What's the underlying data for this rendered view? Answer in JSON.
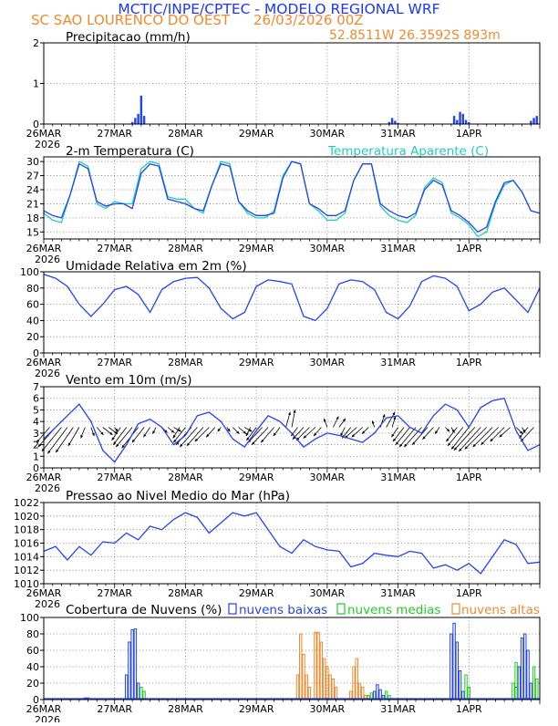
{
  "header": {
    "title": "MCTIC/INPE/CPTEC - MODELO REGIONAL WRF",
    "station": "SC SAO LOURENCO DO OEST",
    "run": "26/03/2026 00Z",
    "location": "52.8511W 26.3592S 893m"
  },
  "colors": {
    "title": "#1a36ff",
    "station": "#ee8a2e",
    "blue": "#2244ee",
    "cyan": "#22ccbb",
    "green": "#22cc22",
    "orange": "#ee8a2e",
    "black": "#000000"
  },
  "time_axis": {
    "labels": [
      "26MAR",
      "27MAR",
      "28MAR",
      "29MAR",
      "30MAR",
      "31MAR",
      "1APR"
    ],
    "year": "2026",
    "hours_total": 168
  },
  "chart_data": [
    {
      "id": "precip",
      "type": "bar",
      "title": "Precipitacao (mm/h)",
      "ylim": [
        0,
        2
      ],
      "yticks": [
        0,
        1,
        2
      ],
      "x_hours": [
        30,
        31,
        32,
        33,
        34,
        117,
        118,
        119,
        120,
        139,
        140,
        141,
        142,
        143,
        144,
        165,
        166,
        167
      ],
      "values": [
        0.05,
        0.15,
        0.25,
        0.7,
        0.2,
        0.05,
        0.15,
        0.08,
        0.03,
        0.2,
        0.1,
        0.3,
        0.25,
        0.1,
        0.05,
        0.08,
        0.15,
        0.2
      ]
    },
    {
      "id": "temp",
      "type": "line",
      "title": "2-m Temperatura (C)",
      "legend": "Temperatura Aparente (C)",
      "ylim": [
        13.5,
        31
      ],
      "yticks": [
        15,
        18,
        21,
        24,
        27,
        30
      ],
      "x": [
        0,
        3,
        6,
        9,
        12,
        15,
        18,
        21,
        24,
        27,
        30,
        33,
        36,
        39,
        42,
        45,
        48,
        51,
        54,
        57,
        60,
        63,
        66,
        69,
        72,
        75,
        78,
        81,
        84,
        87,
        90,
        93,
        96,
        99,
        102,
        105,
        108,
        111,
        114,
        117,
        120,
        123,
        126,
        129,
        132,
        135,
        138,
        141,
        144,
        147,
        150,
        153,
        156,
        159,
        162,
        165,
        168
      ],
      "series": [
        {
          "name": "2-m Temperatura",
          "color": "blue",
          "values": [
            19.5,
            18.5,
            18.0,
            23.0,
            29.5,
            28.5,
            21.5,
            20.5,
            21.0,
            21.0,
            20.0,
            27.5,
            29.5,
            29.0,
            22.0,
            21.5,
            21.0,
            20.0,
            19.5,
            25.0,
            29.5,
            29.0,
            21.5,
            19.5,
            18.5,
            18.5,
            19.0,
            26.5,
            30.0,
            29.5,
            21.0,
            20.0,
            18.5,
            18.5,
            19.5,
            26.0,
            29.5,
            29.5,
            21.0,
            19.5,
            18.5,
            18.0,
            19.0,
            24.0,
            26.0,
            25.0,
            19.5,
            18.5,
            17.0,
            15.0,
            16.0,
            21.5,
            25.5,
            26.0,
            23.5,
            19.5,
            19.0
          ]
        },
        {
          "name": "Temperatura Aparente",
          "color": "cyan",
          "values": [
            19.0,
            17.5,
            17.0,
            23.0,
            30.0,
            29.0,
            21.0,
            20.0,
            21.5,
            21.0,
            21.0,
            28.5,
            30.0,
            29.5,
            22.5,
            22.0,
            22.0,
            20.0,
            19.0,
            25.0,
            30.0,
            29.5,
            21.5,
            19.0,
            18.0,
            18.0,
            19.5,
            27.0,
            30.0,
            29.5,
            21.0,
            19.5,
            17.5,
            17.5,
            19.0,
            26.0,
            29.5,
            29.5,
            20.5,
            18.5,
            17.5,
            17.0,
            18.5,
            24.5,
            26.5,
            25.5,
            19.0,
            18.0,
            16.5,
            14.0,
            15.0,
            21.0,
            25.0,
            26.0,
            23.5,
            19.5,
            19.0
          ]
        }
      ]
    },
    {
      "id": "rh",
      "type": "line",
      "title": "Umidade Relativa em 2m (%)",
      "ylim": [
        0,
        100
      ],
      "yticks": [
        0,
        20,
        40,
        60,
        80,
        100
      ],
      "x": [
        0,
        4,
        8,
        12,
        16,
        20,
        24,
        28,
        32,
        36,
        40,
        44,
        48,
        52,
        56,
        60,
        64,
        68,
        72,
        76,
        80,
        84,
        88,
        92,
        96,
        100,
        104,
        108,
        112,
        116,
        120,
        124,
        128,
        132,
        136,
        140,
        144,
        148,
        152,
        156,
        160,
        164,
        168
      ],
      "series": [
        {
          "name": "Umidade Relativa",
          "color": "blue",
          "values": [
            97,
            92,
            82,
            60,
            45,
            60,
            78,
            82,
            72,
            50,
            78,
            88,
            92,
            93,
            80,
            55,
            42,
            50,
            82,
            90,
            88,
            85,
            45,
            40,
            55,
            85,
            90,
            88,
            78,
            50,
            42,
            58,
            88,
            95,
            92,
            82,
            52,
            60,
            75,
            80,
            65,
            50,
            80
          ]
        }
      ]
    },
    {
      "id": "wind",
      "type": "line",
      "title": "Vento em 10m (m/s)",
      "ylim": [
        0,
        7
      ],
      "yticks": [
        0,
        1,
        2,
        3,
        4,
        5,
        6,
        7
      ],
      "x": [
        0,
        4,
        8,
        12,
        16,
        20,
        24,
        28,
        32,
        36,
        40,
        44,
        48,
        52,
        56,
        60,
        64,
        68,
        72,
        76,
        80,
        84,
        88,
        92,
        96,
        100,
        104,
        108,
        112,
        116,
        120,
        124,
        128,
        132,
        136,
        140,
        144,
        148,
        152,
        156,
        160,
        164,
        168
      ],
      "series": [
        {
          "name": "Velocidade do vento",
          "color": "blue",
          "values": [
            2.5,
            3.5,
            4.5,
            5.5,
            4.0,
            1.5,
            0.5,
            2.0,
            3.8,
            4.2,
            3.5,
            2.0,
            2.8,
            4.5,
            4.8,
            4.0,
            2.5,
            1.8,
            3.2,
            4.5,
            4.0,
            3.0,
            1.8,
            2.5,
            3.0,
            2.8,
            2.5,
            2.2,
            3.0,
            4.3,
            4.5,
            3.5,
            3.0,
            4.5,
            5.5,
            5.0,
            3.5,
            5.2,
            5.8,
            6.0,
            3.2,
            1.5,
            2.0
          ]
        }
      ],
      "vector_baseline": 3.5,
      "vectors": {
        "x": [
          2,
          4,
          6,
          8,
          10,
          12,
          14,
          16,
          18,
          20,
          22,
          24,
          26,
          28,
          30,
          32,
          34,
          36,
          38,
          40,
          42,
          44,
          46,
          48,
          50,
          52,
          54,
          56,
          58,
          60,
          62,
          64,
          66,
          68,
          70,
          72,
          74,
          76,
          78,
          80,
          82,
          84,
          86,
          88,
          90,
          92,
          94,
          96,
          98,
          100,
          102,
          104,
          106,
          108,
          110,
          112,
          114,
          116,
          118,
          120,
          122,
          124,
          126,
          128,
          130,
          132,
          134,
          136,
          138,
          140,
          142,
          144,
          146,
          148,
          150,
          152,
          154,
          156,
          158,
          160,
          162,
          164,
          166
        ],
        "u": [
          -1.2,
          -1.6,
          -1.8,
          -1.8,
          -1.6,
          -1.0,
          -0.4,
          0.3,
          0.6,
          0.9,
          0.8,
          0.3,
          -0.8,
          -1.2,
          -1.5,
          -1.5,
          -1.1,
          -0.6,
          -0.3,
          0.5,
          0.6,
          0.7,
          -0.6,
          -1.1,
          -1.4,
          -1.6,
          -1.5,
          -1.3,
          -0.8,
          -0.3,
          0.3,
          0.6,
          0.7,
          0.7,
          -0.4,
          -0.9,
          -1.3,
          -1.5,
          -1.2,
          -0.6,
          0.4,
          0.3,
          -0.6,
          -1.0,
          -1.2,
          -1.1,
          -0.7,
          -0.3,
          0.5,
          0.6,
          -0.4,
          -0.8,
          -1.1,
          -1.0,
          -0.6,
          -0.2,
          0.4,
          0.8,
          0.3,
          -0.6,
          -1.0,
          -1.3,
          -1.5,
          -1.6,
          -1.4,
          -1.0,
          -0.4,
          0.4,
          0.3,
          -1.0,
          -1.4,
          -1.6,
          -1.9,
          -2.0,
          -2.0,
          -1.8,
          -1.6,
          -1.3,
          -1.0,
          0.6,
          0.3,
          -0.8,
          -1.2
        ],
        "v": [
          -1.4,
          -1.8,
          -2.2,
          -2.4,
          -2.3,
          -1.7,
          -1.0,
          -0.8,
          -0.7,
          -0.7,
          -0.6,
          -0.4,
          -1.2,
          -1.6,
          -1.8,
          -1.9,
          -1.4,
          -0.9,
          -0.6,
          -0.5,
          -0.5,
          -0.4,
          -1.0,
          -1.4,
          -1.6,
          -1.8,
          -1.7,
          -1.3,
          -0.9,
          -0.4,
          -0.4,
          -0.6,
          -0.6,
          -0.4,
          -0.8,
          -1.2,
          -1.4,
          -1.6,
          -1.4,
          -0.8,
          1.4,
          1.6,
          -0.8,
          -1.1,
          -1.2,
          -1.0,
          -0.8,
          0.8,
          1.0,
          0.8,
          -0.8,
          -1.0,
          -1.0,
          -0.9,
          -0.6,
          0.6,
          1.2,
          1.4,
          1.0,
          -0.9,
          -1.3,
          -1.6,
          -1.8,
          -1.8,
          -1.6,
          -1.1,
          -0.6,
          -0.4,
          -0.5,
          -1.3,
          -1.7,
          -2.0,
          -2.1,
          -2.2,
          -2.0,
          -1.8,
          -1.6,
          -1.3,
          -0.9,
          -0.6,
          -0.5,
          -1.0,
          -1.3
        ]
      }
    },
    {
      "id": "pres",
      "type": "line",
      "title": "Pressao ao Nivel Medio do Mar (hPa)",
      "ylim": [
        1010,
        1022
      ],
      "yticks": [
        1010,
        1012,
        1014,
        1016,
        1018,
        1020,
        1022
      ],
      "x": [
        0,
        4,
        8,
        12,
        16,
        20,
        24,
        28,
        32,
        36,
        40,
        44,
        48,
        52,
        56,
        60,
        64,
        68,
        72,
        76,
        80,
        84,
        88,
        92,
        96,
        100,
        104,
        108,
        112,
        116,
        120,
        124,
        128,
        132,
        136,
        140,
        144,
        148,
        152,
        156,
        160,
        164,
        168
      ],
      "series": [
        {
          "name": "Pressao",
          "color": "blue",
          "values": [
            1014.8,
            1015.5,
            1013.5,
            1015.5,
            1014.2,
            1016.2,
            1016.0,
            1017.5,
            1016.5,
            1018.5,
            1018.0,
            1019.5,
            1020.5,
            1019.8,
            1017.5,
            1019.0,
            1020.5,
            1020.0,
            1020.5,
            1018.0,
            1015.5,
            1014.5,
            1016.5,
            1015.5,
            1015.0,
            1014.8,
            1012.5,
            1013.0,
            1014.5,
            1014.2,
            1014.0,
            1014.8,
            1014.5,
            1012.3,
            1012.8,
            1012.0,
            1013.0,
            1011.5,
            1014.0,
            1016.5,
            1015.8,
            1013.0,
            1013.2
          ]
        }
      ]
    },
    {
      "id": "cloud",
      "type": "bar",
      "title": "Cobertura de Nuvens (%)",
      "legend": [
        "nuvens baixas",
        "nuvens medias",
        "nuvens altas"
      ],
      "ylim": [
        0,
        100
      ],
      "yticks": [
        0,
        20,
        40,
        60,
        80,
        100
      ],
      "series": [
        {
          "name": "nuvens baixas",
          "color": "blue",
          "x": [
            14,
            15,
            28,
            29,
            30,
            31,
            32,
            112,
            113,
            114,
            115,
            138,
            139,
            140,
            141,
            142,
            160,
            161,
            162,
            163,
            164,
            165
          ],
          "values": [
            2,
            2,
            30,
            70,
            85,
            86,
            20,
            10,
            18,
            12,
            5,
            80,
            93,
            70,
            35,
            10,
            15,
            40,
            75,
            80,
            60,
            20
          ]
        },
        {
          "name": "nuvens medias",
          "color": "green",
          "x": [
            33,
            34,
            110,
            111,
            116,
            117,
            143,
            144,
            159,
            160,
            166,
            167
          ],
          "values": [
            15,
            10,
            5,
            8,
            10,
            5,
            30,
            15,
            20,
            45,
            40,
            25
          ]
        },
        {
          "name": "nuvens altas",
          "color": "orange",
          "x": [
            86,
            87,
            88,
            89,
            90,
            92,
            93,
            94,
            95,
            96,
            97,
            98,
            99,
            104,
            105,
            106,
            107,
            108,
            109
          ],
          "values": [
            30,
            80,
            55,
            30,
            15,
            82,
            82,
            70,
            50,
            40,
            30,
            25,
            15,
            10,
            40,
            50,
            20,
            15,
            5
          ]
        }
      ]
    }
  ]
}
